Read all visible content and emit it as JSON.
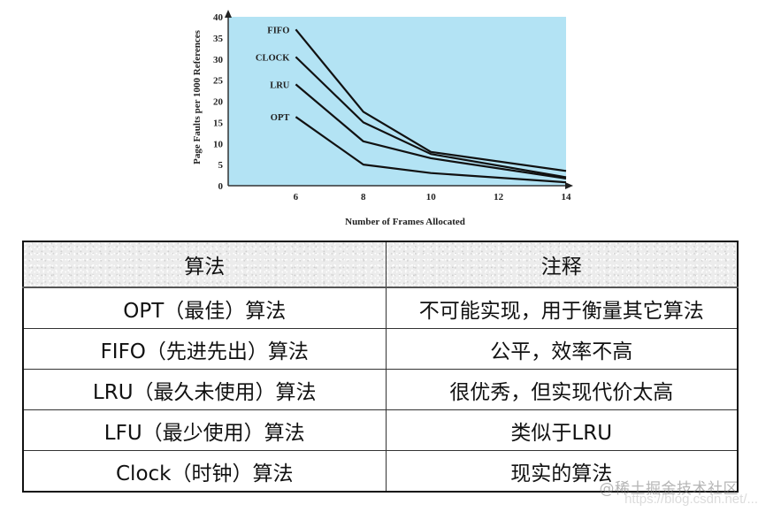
{
  "chart_data": {
    "type": "line",
    "title": "",
    "xlabel": "Number of Frames Allocated",
    "ylabel": "Page Faults per 1000 References",
    "x": [
      6,
      8,
      10,
      14
    ],
    "xticks": [
      6,
      8,
      10,
      12,
      14
    ],
    "yticks": [
      0,
      5,
      10,
      15,
      20,
      25,
      30,
      35,
      40
    ],
    "xlim": [
      4,
      14
    ],
    "ylim": [
      0,
      40
    ],
    "grid": false,
    "legend_position": "inline-labels-left",
    "background_color": "#b3e3f4",
    "line_color": "#111111",
    "series": [
      {
        "name": "FIFO",
        "values": [
          37,
          17.5,
          8,
          3.5
        ]
      },
      {
        "name": "CLOCK",
        "values": [
          30.5,
          15,
          7.5,
          2
        ]
      },
      {
        "name": "LRU",
        "values": [
          24,
          10.5,
          6.5,
          1.7
        ]
      },
      {
        "name": "OPT",
        "values": [
          16.3,
          5,
          3,
          0.8
        ]
      }
    ]
  },
  "table": {
    "headers": [
      "算法",
      "注释"
    ],
    "rows": [
      [
        "OPT（最佳）算法",
        "不可能实现，用于衡量其它算法"
      ],
      [
        "FIFO（先进先出）算法",
        "公平，效率不高"
      ],
      [
        "LRU（最久未使用）算法",
        "很优秀，但实现代价太高"
      ],
      [
        "LFU（最少使用）算法",
        "类似于LRU"
      ],
      [
        "Clock（时钟）算法",
        "现实的算法"
      ]
    ]
  },
  "watermark": {
    "text": "@稀土掘金技术社区",
    "url_text": "https://blog.csdn.net/..."
  }
}
